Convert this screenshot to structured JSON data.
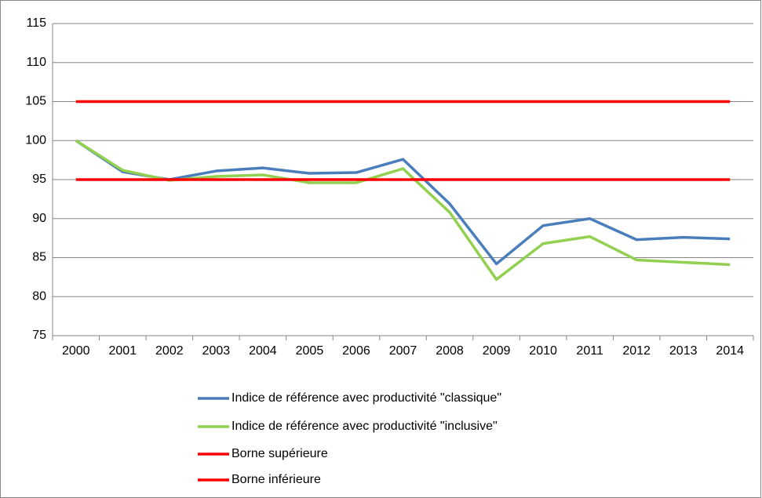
{
  "chart_data": {
    "type": "line",
    "categories": [
      "2000",
      "2001",
      "2002",
      "2003",
      "2004",
      "2005",
      "2006",
      "2007",
      "2008",
      "2009",
      "2010",
      "2011",
      "2012",
      "2013",
      "2014"
    ],
    "series": [
      {
        "name": "Indice de référence avec productivité \"classique\"",
        "color": "#4a7ebb",
        "values": [
          100,
          96.0,
          95.0,
          96.1,
          96.5,
          95.8,
          95.9,
          97.6,
          91.9,
          84.2,
          89.1,
          90.0,
          87.3,
          87.6,
          87.4
        ]
      },
      {
        "name": "Indice de référence avec productivité \"inclusive\"",
        "color": "#92d050",
        "values": [
          100,
          96.2,
          94.9,
          95.4,
          95.6,
          94.6,
          94.6,
          96.4,
          90.8,
          82.2,
          86.8,
          87.7,
          84.7,
          84.4,
          84.1
        ]
      },
      {
        "name": "Borne supérieure",
        "color": "#ff0000",
        "values": [
          105,
          105,
          105,
          105,
          105,
          105,
          105,
          105,
          105,
          105,
          105,
          105,
          105,
          105,
          105
        ]
      },
      {
        "name": "Borne inférieure",
        "color": "#ff0000",
        "values": [
          95,
          95,
          95,
          95,
          95,
          95,
          95,
          95,
          95,
          95,
          95,
          95,
          95,
          95,
          95
        ]
      }
    ],
    "ylim": [
      75,
      115
    ],
    "yticks": [
      75,
      80,
      85,
      90,
      95,
      100,
      105,
      110,
      115
    ],
    "grid": true
  }
}
